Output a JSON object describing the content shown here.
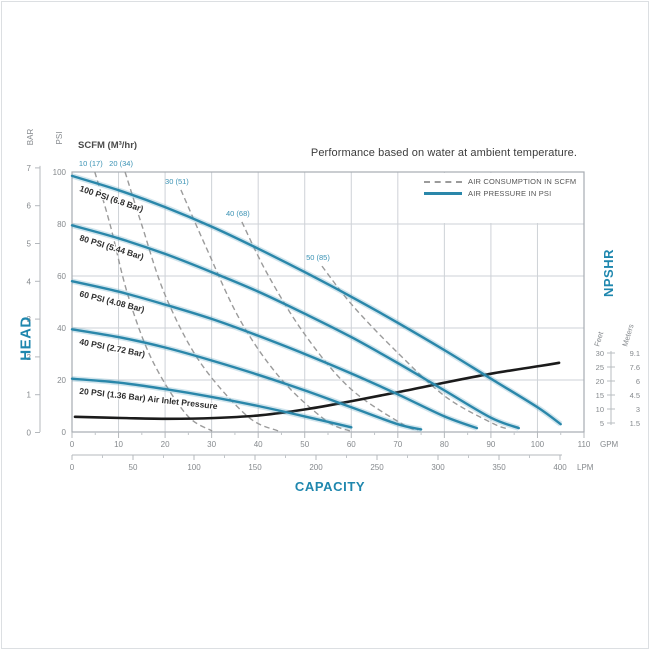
{
  "title": "Performance based on water at ambient temperature.",
  "scfm_header": "SCFM (M³/hr)",
  "legend": [
    {
      "label": "AIR CONSUMPTION IN SCFM",
      "style": "dashed"
    },
    {
      "label": "AIR PRESSURE IN PSI",
      "style": "solid"
    }
  ],
  "axes": {
    "head_label": "HEAD",
    "capacity_label": "CAPACITY",
    "npshr_label": "NPSHR",
    "bar_label": "BAR",
    "psi_label": "PSI",
    "gpm_unit": "GPM",
    "lpm_unit": "LPM",
    "feet_label": "Feet",
    "meters_label": "Meters",
    "bar_ticks": [
      0,
      1,
      2,
      3,
      4,
      5,
      6,
      7
    ],
    "psi_ticks": [
      0,
      20,
      40,
      60,
      80,
      100
    ],
    "gpm_ticks": [
      0,
      10,
      20,
      30,
      40,
      50,
      60,
      70,
      80,
      90,
      100,
      110
    ],
    "lpm_ticks": [
      0,
      50,
      100,
      150,
      200,
      250,
      300,
      350,
      400
    ],
    "feet_ticks": [
      "30",
      "25",
      "20",
      "15",
      "10",
      "5"
    ],
    "meters_ticks": [
      "9.1",
      "7.6",
      "6",
      "4.5",
      "3",
      "1.5"
    ]
  },
  "colors": {
    "accent": "#1f87ae",
    "scfm_label": "#3a92b4",
    "pressure_curve": "#2a87aa",
    "pressure_halo": "rgba(88,162,192,0.28)",
    "air_dashed": "#9b9b9b",
    "npshr_curve": "#1b1b1b",
    "grid": "#ced2d7",
    "plot_border": "#a7acb2",
    "axis_text": "#85898d",
    "dark_text": "#2e2e2e"
  },
  "chart_data": {
    "type": "line",
    "title": "Performance based on water at ambient temperature.",
    "xlabel": "CAPACITY",
    "ylabel_left": "HEAD",
    "ylabel_right": "NPSHR",
    "x_range_gpm": [
      0,
      110
    ],
    "x_range_lpm": [
      0,
      400
    ],
    "y_range_psi": [
      0,
      100
    ],
    "y_range_bar": [
      0,
      7
    ],
    "npshr_range_feet": [
      5,
      30
    ],
    "grid": true,
    "legend_position": "top-right",
    "pressure_series": [
      {
        "name": "100 PSI (6.8 Bar)",
        "points_gpm_psi": [
          [
            0,
            98.5
          ],
          [
            10,
            93
          ],
          [
            20,
            86.5
          ],
          [
            30,
            79
          ],
          [
            40,
            70.5
          ],
          [
            50,
            61.5
          ],
          [
            60,
            52
          ],
          [
            70,
            42
          ],
          [
            80,
            31.5
          ],
          [
            90,
            20.5
          ],
          [
            100,
            9.5
          ],
          [
            105,
            3
          ]
        ]
      },
      {
        "name": "80 PSI (5.44 Bar)",
        "points_gpm_psi": [
          [
            0,
            79.5
          ],
          [
            10,
            74.5
          ],
          [
            20,
            68.5
          ],
          [
            30,
            61.5
          ],
          [
            40,
            54
          ],
          [
            50,
            45.5
          ],
          [
            60,
            36.5
          ],
          [
            70,
            26.5
          ],
          [
            80,
            16
          ],
          [
            90,
            5.5
          ],
          [
            96,
            1.5
          ]
        ]
      },
      {
        "name": "60 PSI (4.08 Bar)",
        "points_gpm_psi": [
          [
            0,
            58
          ],
          [
            10,
            54
          ],
          [
            20,
            49
          ],
          [
            30,
            43.5
          ],
          [
            40,
            37
          ],
          [
            50,
            30
          ],
          [
            60,
            22.5
          ],
          [
            70,
            14.5
          ],
          [
            80,
            6
          ],
          [
            87,
            1.5
          ]
        ]
      },
      {
        "name": "40 PSI (2.72 Bar)",
        "points_gpm_psi": [
          [
            0,
            39.5
          ],
          [
            10,
            36.5
          ],
          [
            20,
            32.5
          ],
          [
            30,
            27.5
          ],
          [
            40,
            22
          ],
          [
            50,
            16
          ],
          [
            60,
            9.5
          ],
          [
            70,
            3
          ],
          [
            75,
            1
          ]
        ]
      },
      {
        "name": "20 PSI (1.36 Bar) Air Inlet Pressure",
        "points_gpm_psi": [
          [
            0,
            20.5
          ],
          [
            10,
            19
          ],
          [
            20,
            16.5
          ],
          [
            30,
            13.5
          ],
          [
            40,
            10
          ],
          [
            50,
            6
          ],
          [
            60,
            1.8
          ]
        ]
      }
    ],
    "air_consumption_series": [
      {
        "name": "10 (17)",
        "points_gpm_psi": [
          [
            4.9,
            100
          ],
          [
            8.2,
            79.6
          ],
          [
            12.0,
            52.7
          ],
          [
            17.2,
            27.7
          ],
          [
            24.5,
            6.9
          ],
          [
            30.1,
            0.4
          ]
        ]
      },
      {
        "name": "20 (34)",
        "points_gpm_psi": [
          [
            11.4,
            100
          ],
          [
            15.0,
            79.6
          ],
          [
            20.0,
            52.7
          ],
          [
            27.5,
            26.9
          ],
          [
            37.6,
            6.2
          ],
          [
            44.3,
            0.4
          ]
        ]
      },
      {
        "name": "30 (51)",
        "points_gpm_psi": [
          [
            23.4,
            93.1
          ],
          [
            28.6,
            71.9
          ],
          [
            36.1,
            43.1
          ],
          [
            44.7,
            20.8
          ],
          [
            54.4,
            4.6
          ],
          [
            59.7,
            0.4
          ]
        ]
      },
      {
        "name": "40 (68)",
        "points_gpm_psi": [
          [
            36.5,
            80.8
          ],
          [
            42.1,
            60.4
          ],
          [
            50.1,
            37.3
          ],
          [
            59.7,
            16.9
          ],
          [
            70.9,
            3.1
          ],
          [
            74.3,
            0.8
          ]
        ]
      },
      {
        "name": "50 (85)",
        "points_gpm_psi": [
          [
            53.7,
            63.8
          ],
          [
            60.2,
            48.8
          ],
          [
            69.4,
            31.5
          ],
          [
            80.1,
            13.8
          ],
          [
            90.2,
            3.5
          ],
          [
            93.7,
            1.2
          ]
        ]
      }
    ],
    "npshr_series": {
      "name": "NPSHR",
      "points_gpm_feet": [
        [
          0,
          7.2
        ],
        [
          10,
          6.8
        ],
        [
          20,
          6.5
        ],
        [
          30,
          6.8
        ],
        [
          40,
          7.8
        ],
        [
          50,
          10
        ],
        [
          60,
          13
        ],
        [
          70,
          16.2
        ],
        [
          80,
          19.6
        ],
        [
          90,
          22.8
        ],
        [
          100,
          25.4
        ],
        [
          104,
          26.5
        ]
      ]
    }
  }
}
